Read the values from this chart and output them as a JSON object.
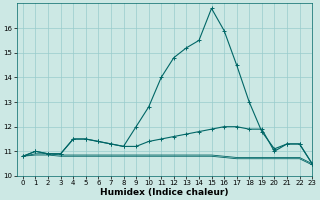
{
  "xlabel": "Humidex (Indice chaleur)",
  "ylabel": "",
  "bg_color": "#cce8e4",
  "grid_color": "#99cccc",
  "line_color": "#006666",
  "x": [
    0,
    1,
    2,
    3,
    4,
    5,
    6,
    7,
    8,
    9,
    10,
    11,
    12,
    13,
    14,
    15,
    16,
    17,
    18,
    19,
    20,
    21,
    22,
    23
  ],
  "line1": [
    10.8,
    11.0,
    10.9,
    10.9,
    11.5,
    11.5,
    11.4,
    11.3,
    11.2,
    12.0,
    12.8,
    14.0,
    14.8,
    15.2,
    15.5,
    16.8,
    15.9,
    14.5,
    13.0,
    11.8,
    11.1,
    11.3,
    11.3,
    10.5
  ],
  "line2": [
    10.8,
    11.0,
    10.9,
    10.9,
    11.5,
    11.5,
    11.4,
    11.3,
    11.2,
    11.2,
    11.4,
    11.5,
    11.6,
    11.7,
    11.8,
    11.9,
    12.0,
    12.0,
    11.9,
    11.9,
    11.0,
    11.3,
    11.3,
    10.5
  ],
  "line3": [
    10.8,
    10.9,
    10.9,
    10.85,
    10.85,
    10.85,
    10.85,
    10.85,
    10.85,
    10.85,
    10.85,
    10.85,
    10.85,
    10.85,
    10.85,
    10.85,
    10.8,
    10.75,
    10.75,
    10.75,
    10.75,
    10.75,
    10.75,
    10.5
  ],
  "line4": [
    10.8,
    10.85,
    10.85,
    10.8,
    10.8,
    10.8,
    10.8,
    10.8,
    10.8,
    10.8,
    10.8,
    10.8,
    10.8,
    10.8,
    10.8,
    10.8,
    10.75,
    10.7,
    10.7,
    10.7,
    10.7,
    10.7,
    10.7,
    10.45
  ],
  "ylim": [
    10,
    17
  ],
  "xlim": [
    -0.5,
    23
  ],
  "yticks": [
    10,
    11,
    12,
    13,
    14,
    15,
    16
  ],
  "xticks": [
    0,
    1,
    2,
    3,
    4,
    5,
    6,
    7,
    8,
    9,
    10,
    11,
    12,
    13,
    14,
    15,
    16,
    17,
    18,
    19,
    20,
    21,
    22,
    23
  ],
  "title_fontsize": 6.5,
  "label_fontsize": 6.5,
  "tick_fontsize": 5.0
}
